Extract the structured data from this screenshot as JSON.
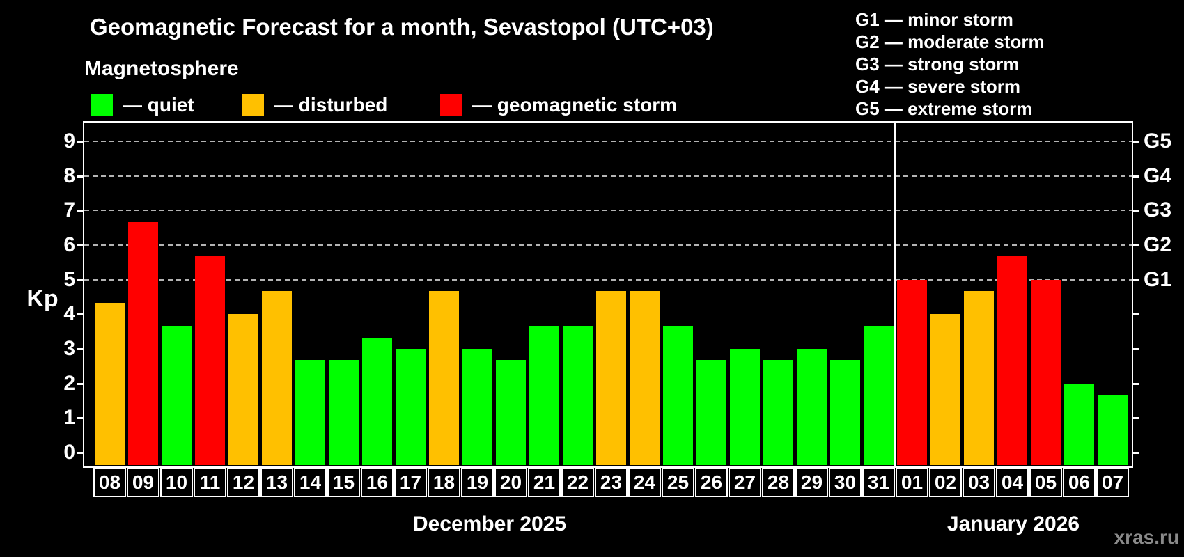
{
  "title": "Geomagnetic Forecast for a month, Sevastopol (UTC+03)",
  "subtitle": "Magnetosphere",
  "legend": {
    "items": [
      {
        "status": "quiet",
        "label": "— quiet",
        "color": "#00ff00"
      },
      {
        "status": "disturbed",
        "label": "— disturbed",
        "color": "#ffc000"
      },
      {
        "status": "storm",
        "label": "— geomagnetic storm",
        "color": "#ff0000"
      }
    ]
  },
  "g_scale_legend": [
    {
      "level": "G1",
      "desc": "minor storm",
      "label": "G1 — minor storm"
    },
    {
      "level": "G2",
      "desc": "moderate storm",
      "label": "G2 — moderate storm"
    },
    {
      "level": "G3",
      "desc": "strong storm",
      "label": "G3 — strong storm"
    },
    {
      "level": "G4",
      "desc": "severe storm",
      "label": "G4 — severe storm"
    },
    {
      "level": "G5",
      "desc": "extreme storm",
      "label": "G5 — extreme storm"
    }
  ],
  "watermark": "xras.ru",
  "chart_data": {
    "type": "bar",
    "ylabel": "Kp",
    "ylim": [
      0,
      9
    ],
    "yticks": [
      0,
      1,
      2,
      3,
      4,
      5,
      6,
      7,
      8,
      9
    ],
    "gridlines_at": [
      5,
      6,
      7,
      8,
      9
    ],
    "right_axis_labels": [
      {
        "kp": 5,
        "label": "G1"
      },
      {
        "kp": 6,
        "label": "G2"
      },
      {
        "kp": 7,
        "label": "G3"
      },
      {
        "kp": 8,
        "label": "G4"
      },
      {
        "kp": 9,
        "label": "G5"
      }
    ],
    "status_colors": {
      "quiet": "#00ff00",
      "disturbed": "#ffc000",
      "storm": "#ff0000"
    },
    "months": [
      {
        "label": "December 2025",
        "days": [
          {
            "day": "08",
            "kp": 4.33,
            "status": "disturbed"
          },
          {
            "day": "09",
            "kp": 6.67,
            "status": "storm"
          },
          {
            "day": "10",
            "kp": 3.67,
            "status": "quiet"
          },
          {
            "day": "11",
            "kp": 5.67,
            "status": "storm"
          },
          {
            "day": "12",
            "kp": 4.0,
            "status": "disturbed"
          },
          {
            "day": "13",
            "kp": 4.67,
            "status": "disturbed"
          },
          {
            "day": "14",
            "kp": 2.67,
            "status": "quiet"
          },
          {
            "day": "15",
            "kp": 2.67,
            "status": "quiet"
          },
          {
            "day": "16",
            "kp": 3.33,
            "status": "quiet"
          },
          {
            "day": "17",
            "kp": 3.0,
            "status": "quiet"
          },
          {
            "day": "18",
            "kp": 4.67,
            "status": "disturbed"
          },
          {
            "day": "19",
            "kp": 3.0,
            "status": "quiet"
          },
          {
            "day": "20",
            "kp": 2.67,
            "status": "quiet"
          },
          {
            "day": "21",
            "kp": 3.67,
            "status": "quiet"
          },
          {
            "day": "22",
            "kp": 3.67,
            "status": "quiet"
          },
          {
            "day": "23",
            "kp": 4.67,
            "status": "disturbed"
          },
          {
            "day": "24",
            "kp": 4.67,
            "status": "disturbed"
          },
          {
            "day": "25",
            "kp": 3.67,
            "status": "quiet"
          },
          {
            "day": "26",
            "kp": 2.67,
            "status": "quiet"
          },
          {
            "day": "27",
            "kp": 3.0,
            "status": "quiet"
          },
          {
            "day": "28",
            "kp": 2.67,
            "status": "quiet"
          },
          {
            "day": "29",
            "kp": 3.0,
            "status": "quiet"
          },
          {
            "day": "30",
            "kp": 2.67,
            "status": "quiet"
          },
          {
            "day": "31",
            "kp": 3.67,
            "status": "quiet"
          }
        ]
      },
      {
        "label": "January 2026",
        "days": [
          {
            "day": "01",
            "kp": 5.0,
            "status": "storm"
          },
          {
            "day": "02",
            "kp": 4.0,
            "status": "disturbed"
          },
          {
            "day": "03",
            "kp": 4.67,
            "status": "disturbed"
          },
          {
            "day": "04",
            "kp": 5.67,
            "status": "storm"
          },
          {
            "day": "05",
            "kp": 5.0,
            "status": "storm"
          },
          {
            "day": "06",
            "kp": 2.0,
            "status": "quiet"
          },
          {
            "day": "07",
            "kp": 1.67,
            "status": "quiet"
          }
        ]
      }
    ]
  }
}
